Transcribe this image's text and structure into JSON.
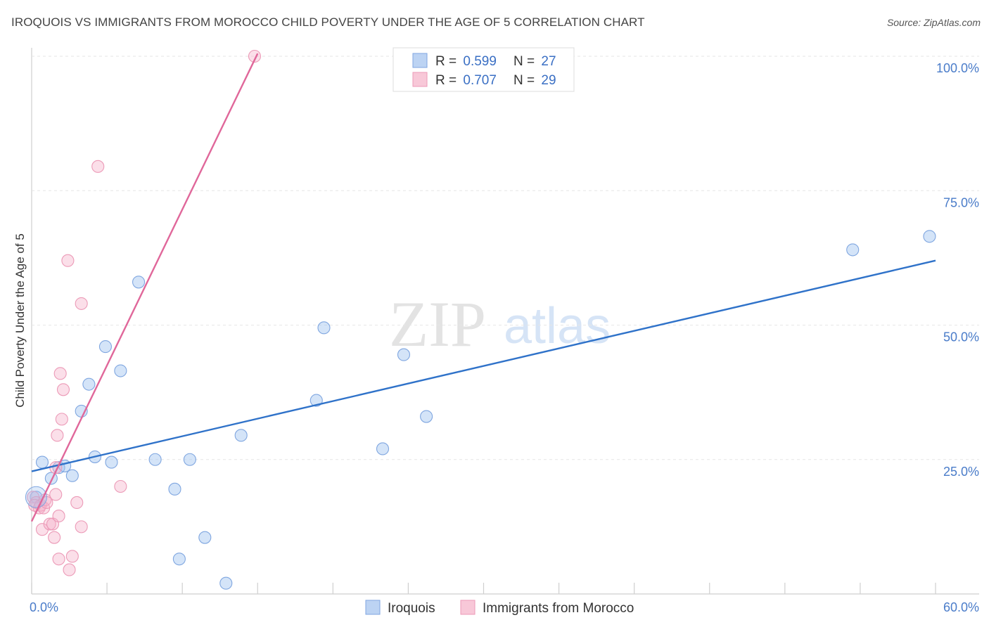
{
  "header": {
    "title": "IROQUOIS VS IMMIGRANTS FROM MOROCCO CHILD POVERTY UNDER THE AGE OF 5 CORRELATION CHART",
    "source": "Source: ZipAtlas.com"
  },
  "watermark": {
    "zip": "ZIP",
    "atlas": "atlas"
  },
  "legend": {
    "series1": {
      "r_label": "R = ",
      "r_value": "0.599",
      "n_label": "N = ",
      "n_value": "27"
    },
    "series2": {
      "r_label": "R = ",
      "r_value": "0.707",
      "n_label": "N = ",
      "n_value": "29"
    }
  },
  "chart_data": {
    "type": "scatter",
    "title": "IROQUOIS VS IMMIGRANTS FROM MOROCCO CHILD POVERTY UNDER THE AGE OF 5 CORRELATION CHART",
    "xlabel": "",
    "ylabel": "Child Poverty Under the Age of 5",
    "xlim": [
      0,
      60
    ],
    "ylim": [
      0,
      100
    ],
    "x_tick_labels": [
      "0.0%",
      "60.0%"
    ],
    "y_tick_values": [
      25,
      50,
      75,
      100
    ],
    "y_tick_labels": [
      "25.0%",
      "50.0%",
      "75.0%",
      "100.0%"
    ],
    "grid": true,
    "legend_position": "top-center",
    "colors": {
      "iroquois": "#6f9fe0",
      "morocco": "#ef8faf",
      "iroquois_line": "#2f72c9",
      "morocco_line": "#e0679a"
    },
    "series": [
      {
        "name": "Iroquois",
        "points": [
          [
            0.3,
            18.0
          ],
          [
            0.7,
            24.5
          ],
          [
            1.3,
            21.5
          ],
          [
            1.8,
            23.5
          ],
          [
            2.2,
            23.8
          ],
          [
            2.7,
            22.0
          ],
          [
            3.3,
            34.0
          ],
          [
            3.8,
            39.0
          ],
          [
            4.2,
            25.5
          ],
          [
            4.9,
            46.0
          ],
          [
            5.3,
            24.5
          ],
          [
            5.9,
            41.5
          ],
          [
            7.1,
            58.0
          ],
          [
            8.2,
            25.0
          ],
          [
            9.5,
            19.5
          ],
          [
            9.8,
            6.5
          ],
          [
            10.5,
            25.0
          ],
          [
            11.5,
            10.5
          ],
          [
            12.9,
            2.0
          ],
          [
            13.9,
            29.5
          ],
          [
            18.9,
            36.0
          ],
          [
            19.4,
            49.5
          ],
          [
            23.3,
            27.0
          ],
          [
            24.7,
            44.5
          ],
          [
            26.2,
            33.0
          ],
          [
            54.5,
            64.0
          ],
          [
            59.6,
            66.5
          ]
        ],
        "trend": {
          "x": [
            0,
            60
          ],
          "y": [
            22.8,
            62.0
          ]
        }
      },
      {
        "name": "Immigrants from Morocco",
        "points": [
          [
            0.1,
            18.0
          ],
          [
            0.3,
            17.0
          ],
          [
            0.5,
            16.0
          ],
          [
            0.6,
            16.5
          ],
          [
            0.7,
            12.0
          ],
          [
            0.8,
            16.0
          ],
          [
            0.9,
            17.5
          ],
          [
            1.0,
            17.0
          ],
          [
            1.2,
            13.0
          ],
          [
            1.4,
            13.0
          ],
          [
            1.5,
            10.5
          ],
          [
            1.6,
            23.5
          ],
          [
            1.6,
            18.5
          ],
          [
            1.7,
            29.5
          ],
          [
            1.8,
            14.5
          ],
          [
            1.8,
            6.5
          ],
          [
            1.9,
            41.0
          ],
          [
            2.0,
            32.5
          ],
          [
            2.1,
            38.0
          ],
          [
            2.4,
            62.0
          ],
          [
            2.5,
            4.5
          ],
          [
            2.7,
            7.0
          ],
          [
            3.0,
            17.0
          ],
          [
            3.3,
            12.5
          ],
          [
            3.3,
            54.0
          ],
          [
            4.4,
            79.5
          ],
          [
            5.9,
            20.0
          ],
          [
            14.8,
            100.0
          ],
          [
            0.2,
            16.5
          ]
        ],
        "trend": {
          "x": [
            0,
            15
          ],
          "y": [
            13.5,
            100.5
          ]
        }
      }
    ]
  }
}
